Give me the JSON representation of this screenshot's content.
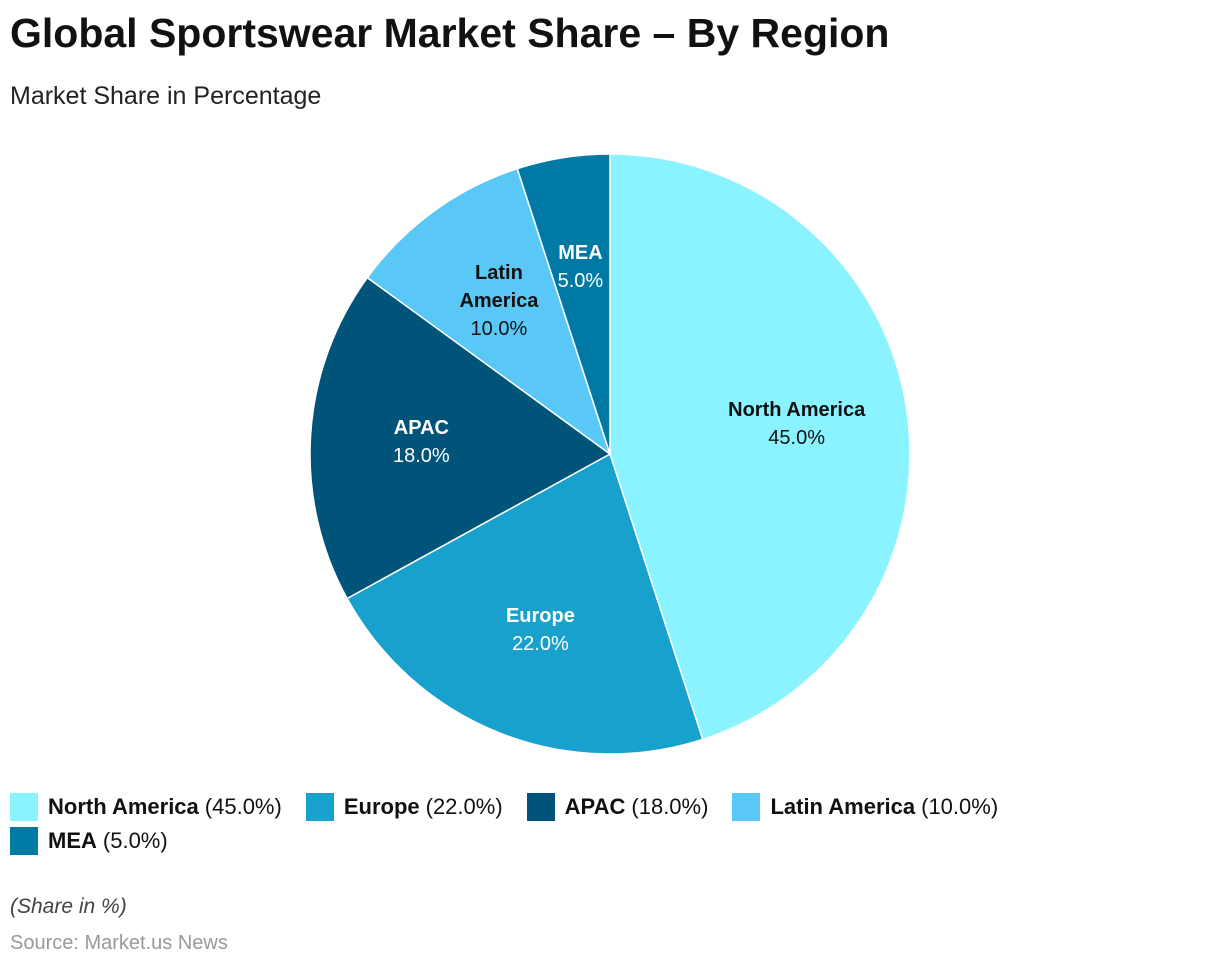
{
  "chart_data": {
    "type": "pie",
    "title": "Global Sportswear Market Share – By Region",
    "subtitle": "Market Share in Percentage",
    "categories": [
      "North America",
      "Europe",
      "APAC",
      "Latin America",
      "MEA"
    ],
    "values": [
      45,
      22,
      18,
      10,
      5
    ],
    "value_labels": [
      "45.0%",
      "22.0%",
      "18.0%",
      "10.0%",
      "5.0%"
    ],
    "legend_labels": [
      "(45.0%)",
      "(22.0%)",
      "(18.0%)",
      "(10.0%)",
      "(5.0%)"
    ],
    "colors": [
      "#8af3ff",
      "#18a1cd",
      "#015479",
      "#5ac8f7",
      "#0179a5"
    ],
    "label_colors": [
      "#111111",
      "#ffffff",
      "#ffffff",
      "#111111",
      "#ffffff"
    ],
    "note": "(Share in %)",
    "source": "Source: Market.us News"
  }
}
